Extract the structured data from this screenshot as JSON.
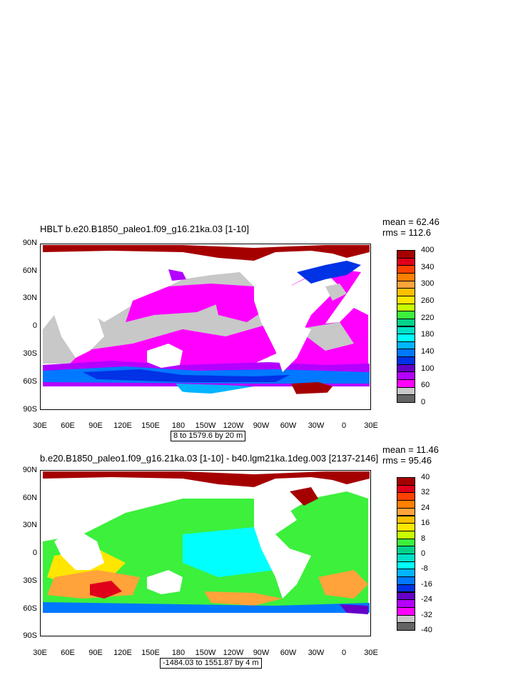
{
  "panels": [
    {
      "title": "HBLT b.e20.B1850_paleo1.f09_g16.21ka.03 [1-10]",
      "mean": "mean = 62.46",
      "rms": "rms = 112.6",
      "range_label": "8 to 1579.6 by 20 m",
      "colorbar_labels": [
        "400",
        "340",
        "300",
        "260",
        "220",
        "180",
        "140",
        "100",
        "60",
        "0"
      ],
      "colorbar_colors": [
        "#a50000",
        "#e0001a",
        "#ff4000",
        "#ff7f00",
        "#ffa33a",
        "#ffc000",
        "#ffe600",
        "#c8ff00",
        "#3cf03c",
        "#00d28c",
        "#00e0c8",
        "#00ffff",
        "#00b4ff",
        "#0078ff",
        "#0032e6",
        "#6400c8",
        "#b400ff",
        "#ff00ff",
        "#c8c8c8",
        "#646464"
      ]
    },
    {
      "title": "b.e20.B1850_paleo1.f09_g16.21ka.03 [1-10] - b40.lgm21ka.1deg.003 [2137-2146]",
      "mean": "mean = 11.46",
      "rms": "rms = 95.46",
      "range_label": "-1484.03 to 1551.87 by 4 m",
      "colorbar_labels": [
        "40",
        "32",
        "24",
        "16",
        "8",
        "0",
        "-8",
        "-16",
        "-24",
        "-32",
        "-40"
      ],
      "colorbar_colors": [
        "#a50000",
        "#e0001a",
        "#ff4000",
        "#ff7f00",
        "#ffa33a",
        "#ffc000",
        "#ffe600",
        "#c8ff00",
        "#3cf03c",
        "#00d28c",
        "#00e0c8",
        "#00ffff",
        "#00b4ff",
        "#0078ff",
        "#0032e6",
        "#6400c8",
        "#b400ff",
        "#ff00ff",
        "#c8c8c8",
        "#646464"
      ]
    }
  ],
  "lat_labels": [
    "90N",
    "60N",
    "30N",
    "0",
    "30S",
    "60S",
    "90S"
  ],
  "lon_labels": [
    "30E",
    "60E",
    "90E",
    "120E",
    "150E",
    "180",
    "150W",
    "120W",
    "90W",
    "60W",
    "30W",
    "0",
    "30E"
  ]
}
